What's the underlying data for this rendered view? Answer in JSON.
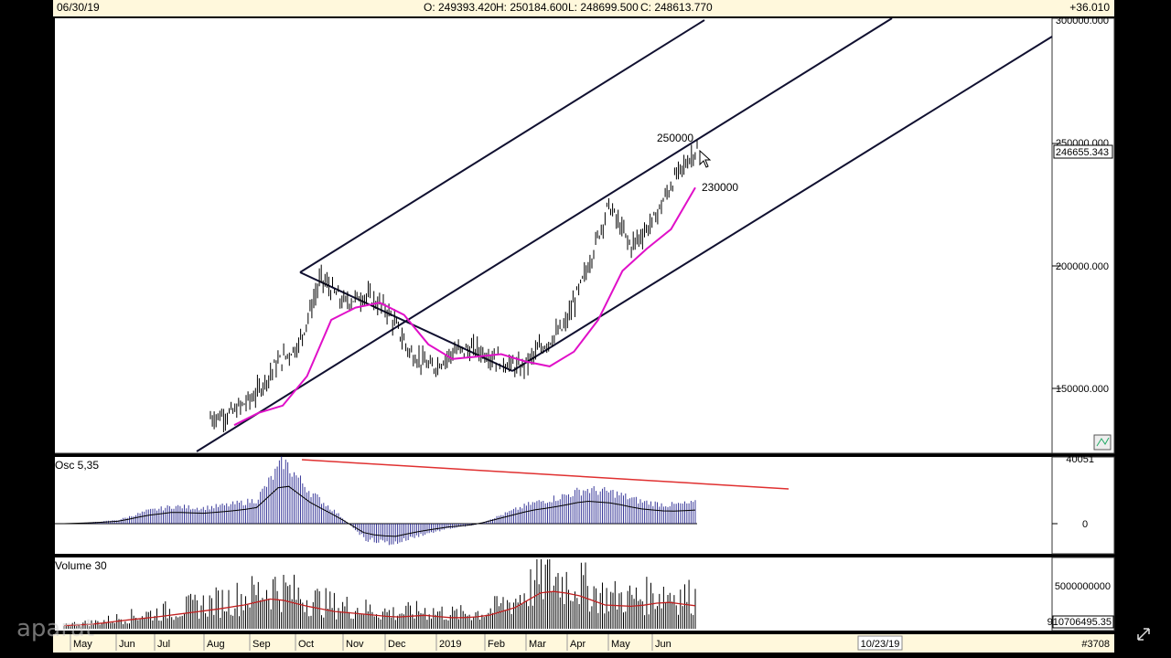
{
  "header": {
    "date": "06/30/19",
    "open": "O: 249393.420",
    "high": "H: 250184.600",
    "low": "L: 248699.500",
    "close": "C: 248613.770",
    "change": "+36.010"
  },
  "price_panel": {
    "y_ticks": [
      "250000.000",
      "200000.000",
      "150000.000"
    ],
    "y_values": [
      250000,
      200000,
      150000
    ],
    "last_price_label": "246655.343",
    "last_price": 246655,
    "top_partial_label": "300000.000",
    "annotations": {
      "upper": "250000",
      "lower": "230000"
    }
  },
  "osc_panel": {
    "label": "Osc 5,35",
    "y_top_label": "40051",
    "zero_label": "0"
  },
  "volume_panel": {
    "label": "Volume 30",
    "y_ticks": [
      "5000000000",
      "910706495.35"
    ]
  },
  "x_axis": {
    "months": [
      "May",
      "Jun",
      "Jul",
      "Aug",
      "Sep",
      "Oct",
      "Nov",
      "Dec",
      "2019",
      "Feb",
      "Mar",
      "Apr",
      "May",
      "Jun"
    ],
    "cursor_date": "10/23/19",
    "bar_count": "#3708"
  },
  "watermark": "aparat",
  "chart_data": [
    {
      "type": "line",
      "title": "",
      "series": [
        {
          "values": [
            138000,
            140000,
            147000,
            160000,
            168000,
            195000,
            185000,
            188000,
            182000,
            165000,
            158000,
            165000,
            166000,
            162000,
            158000,
            167000,
            175000,
            198000,
            225000,
            208000,
            218000,
            236000,
            248000
          ]
        },
        {
          "values": [
            135000,
            140000,
            143000,
            155000,
            178000,
            183000,
            185000,
            180000,
            168000,
            162000,
            163000,
            164000,
            161000,
            159000,
            165000,
            178000,
            198000,
            207000,
            215000,
            232000
          ]
        }
      ],
      "ylim": [
        135000,
        300000
      ]
    },
    {
      "type": "bar",
      "title": "",
      "series": [
        {
          "name": "Osc 5,35",
          "values": [
            0,
            0.02,
            0.06,
            0.2,
            0.28,
            0.25,
            0.3,
            0.38,
            1.0,
            0.5,
            0.15,
            -0.25,
            -0.32,
            -0.18,
            -0.08,
            -0.02,
            0.15,
            0.32,
            0.42,
            0.55,
            0.5,
            0.36,
            0.3,
            0.33
          ]
        }
      ]
    },
    {
      "type": "bar",
      "title": "",
      "series": [
        {
          "name": "Volume 30",
          "values": [
            0.08,
            0.12,
            0.22,
            0.3,
            0.4,
            0.5,
            0.62,
            0.8,
            0.6,
            0.45,
            0.38,
            0.3,
            0.35,
            0.28,
            0.32,
            0.55,
            1.0,
            0.9,
            0.62,
            0.58,
            0.7,
            0.6
          ]
        }
      ]
    }
  ]
}
